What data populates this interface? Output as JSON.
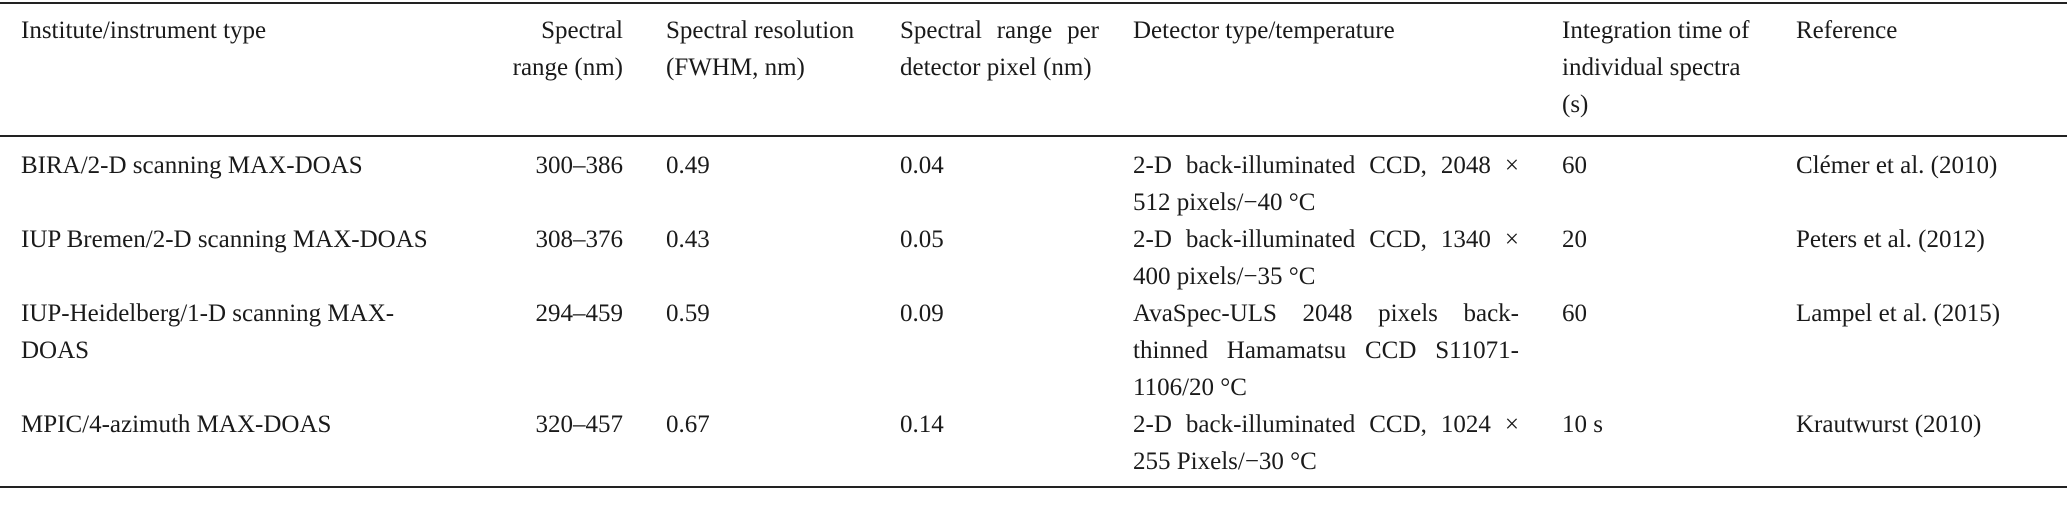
{
  "table": {
    "headers": [
      "Institute/instrument type",
      "Spectral range (nm)",
      "Spectral resolution (FWHM, nm)",
      "Spectral range per detector pixel (nm)",
      "Detector type/temperature",
      "Integration time of individual spectra (s)",
      "Reference"
    ],
    "rows": [
      [
        "BIRA/2-D scanning MAX-DOAS",
        "300–386",
        "0.49",
        "0.04",
        "2-D back-illuminated CCD, 2048 × 512 pixels/−40 °C",
        "60",
        "Clémer et al. (2010)"
      ],
      [
        "IUP Bremen/2-D scanning MAX-DOAS",
        "308–376",
        "0.43",
        "0.05",
        "2-D back-illuminated CCD, 1340 × 400 pixels/−35 °C",
        "20",
        "Peters et al. (2012)"
      ],
      [
        "IUP-Heidelberg/1-D scanning MAX-DOAS",
        "294–459",
        "0.59",
        "0.09",
        "AvaSpec-ULS 2048 pixels back-thinned Hamamatsu CCD S11071-1106/20 °C",
        "60",
        "Lampel et al. (2015)"
      ],
      [
        "MPIC/4-azimuth MAX-DOAS",
        "320–457",
        "0.67",
        "0.14",
        "2-D back-illuminated CCD, 1024 × 255 Pixels/−30 °C",
        "10 s",
        "Krautwurst (2010)"
      ]
    ]
  }
}
